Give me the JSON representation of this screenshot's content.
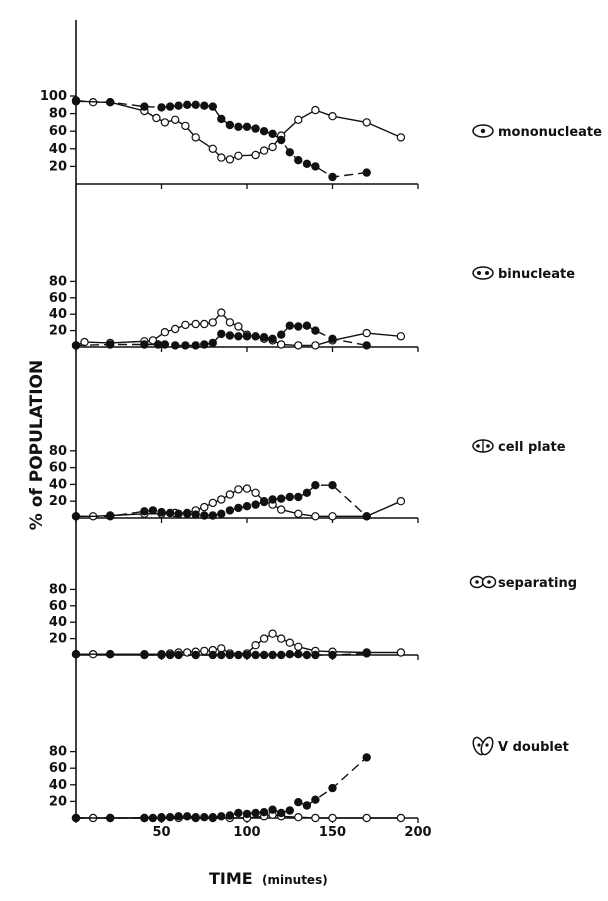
{
  "figure": {
    "ylabel": "% of POPULATION",
    "xlabel": "TIME",
    "xlabel_unit": "(minutes)",
    "x_ticks": [
      "50",
      "100",
      "150",
      "200"
    ]
  },
  "chart_data": [
    {
      "type": "line",
      "panel": "mononucleate",
      "label": "mononucleate",
      "icon": "mononucleate-cell-icon",
      "xlim": [
        0,
        200
      ],
      "ylim": [
        0,
        100
      ],
      "y_ticks": [
        "100",
        "80",
        "60",
        "40",
        "20"
      ],
      "series": [
        {
          "marker": "open",
          "line": "solid",
          "x": [
            0,
            10,
            20,
            40,
            47,
            52,
            58,
            64,
            70,
            80,
            85,
            90,
            95,
            105,
            110,
            115,
            120,
            130,
            140,
            150,
            170,
            190
          ],
          "y": [
            95,
            93,
            93,
            83,
            75,
            70,
            73,
            66,
            53,
            40,
            30,
            28,
            32,
            33,
            38,
            42,
            55,
            73,
            84,
            77,
            70,
            53
          ]
        },
        {
          "marker": "filled",
          "line": "dashed",
          "x": [
            0,
            20,
            40,
            50,
            55,
            60,
            65,
            70,
            75,
            80,
            85,
            90,
            95,
            100,
            105,
            110,
            115,
            120,
            125,
            130,
            135,
            140,
            150,
            170
          ],
          "y": [
            94,
            93,
            88,
            87,
            88,
            89,
            90,
            90,
            89,
            88,
            74,
            67,
            65,
            65,
            63,
            60,
            57,
            50,
            36,
            27,
            23,
            20,
            8,
            13
          ]
        }
      ]
    },
    {
      "type": "line",
      "panel": "binucleate",
      "label": "binucleate",
      "icon": "binucleate-cell-icon",
      "xlim": [
        0,
        200
      ],
      "ylim": [
        0,
        100
      ],
      "y_ticks": [
        "80",
        "60",
        "40",
        "20"
      ],
      "series": [
        {
          "marker": "open",
          "line": "solid",
          "x": [
            0,
            5,
            20,
            40,
            45,
            52,
            58,
            64,
            70,
            75,
            80,
            85,
            90,
            95,
            100,
            110,
            115,
            120,
            130,
            140,
            150,
            170,
            190
          ],
          "y": [
            2,
            6,
            5,
            7,
            8,
            18,
            22,
            27,
            28,
            28,
            30,
            42,
            30,
            25,
            15,
            10,
            8,
            3,
            2,
            2,
            8,
            17,
            13
          ]
        },
        {
          "marker": "filled",
          "line": "dashed",
          "x": [
            0,
            20,
            40,
            48,
            52,
            58,
            64,
            70,
            75,
            80,
            85,
            90,
            95,
            100,
            105,
            110,
            115,
            120,
            125,
            130,
            135,
            140,
            150,
            170
          ],
          "y": [
            2,
            3,
            3,
            3,
            3,
            2,
            2,
            2,
            3,
            5,
            16,
            14,
            13,
            13,
            13,
            12,
            10,
            15,
            26,
            25,
            26,
            20,
            10,
            2
          ]
        }
      ]
    },
    {
      "type": "line",
      "panel": "cell plate",
      "label": "cell plate",
      "icon": "cell-plate-icon",
      "xlim": [
        0,
        200
      ],
      "ylim": [
        0,
        100
      ],
      "y_ticks": [
        "80",
        "60",
        "40",
        "20"
      ],
      "series": [
        {
          "marker": "open",
          "line": "solid",
          "x": [
            0,
            10,
            20,
            40,
            50,
            58,
            65,
            70,
            75,
            80,
            85,
            90,
            95,
            100,
            105,
            110,
            115,
            120,
            130,
            140,
            150,
            170,
            190
          ],
          "y": [
            2,
            2,
            3,
            5,
            5,
            6,
            6,
            9,
            13,
            18,
            22,
            28,
            34,
            35,
            30,
            20,
            16,
            10,
            5,
            2,
            2,
            2,
            20
          ]
        },
        {
          "marker": "filled",
          "line": "dashed",
          "x": [
            0,
            20,
            40,
            45,
            50,
            55,
            60,
            65,
            70,
            75,
            80,
            85,
            90,
            95,
            100,
            105,
            110,
            115,
            120,
            125,
            130,
            135,
            140,
            150,
            170
          ],
          "y": [
            2,
            2,
            8,
            9,
            7,
            6,
            5,
            5,
            4,
            3,
            3,
            5,
            9,
            12,
            14,
            16,
            19,
            22,
            23,
            25,
            25,
            30,
            39,
            39,
            2
          ]
        }
      ]
    },
    {
      "type": "line",
      "panel": "separating",
      "label": "separating",
      "icon": "separating-cell-icon",
      "xlim": [
        0,
        200
      ],
      "ylim": [
        0,
        100
      ],
      "y_ticks": [
        "80",
        "60",
        "40",
        "20"
      ],
      "series": [
        {
          "marker": "open",
          "line": "solid",
          "x": [
            0,
            10,
            20,
            40,
            50,
            55,
            60,
            65,
            70,
            75,
            80,
            85,
            90,
            100,
            105,
            110,
            115,
            120,
            125,
            130,
            140,
            150,
            170,
            190
          ],
          "y": [
            1,
            1,
            1,
            1,
            1,
            2,
            3,
            3,
            4,
            5,
            6,
            8,
            2,
            2,
            12,
            20,
            26,
            20,
            15,
            10,
            5,
            4,
            3,
            3
          ]
        },
        {
          "marker": "filled",
          "line": "dashed",
          "x": [
            0,
            20,
            40,
            50,
            55,
            60,
            70,
            80,
            85,
            90,
            95,
            100,
            105,
            110,
            115,
            120,
            125,
            130,
            135,
            140,
            150,
            170
          ],
          "y": [
            1,
            1,
            0,
            0,
            0,
            0,
            0,
            0,
            0,
            0,
            0,
            0,
            0,
            0,
            0,
            0,
            1,
            1,
            0,
            0,
            0,
            2
          ]
        }
      ]
    },
    {
      "type": "line",
      "panel": "V doublet",
      "label": "V doublet",
      "icon": "v-doublet-cell-icon",
      "xlim": [
        0,
        200
      ],
      "ylim": [
        0,
        100
      ],
      "y_ticks": [
        "80",
        "60",
        "40",
        "20"
      ],
      "series": [
        {
          "marker": "open",
          "line": "solid",
          "x": [
            0,
            10,
            20,
            40,
            50,
            60,
            70,
            80,
            90,
            100,
            110,
            115,
            120,
            130,
            140,
            150,
            170,
            190
          ],
          "y": [
            0,
            0,
            0,
            0,
            0,
            0,
            0,
            0,
            0,
            0,
            2,
            4,
            2,
            1,
            0,
            0,
            0,
            0
          ]
        },
        {
          "marker": "filled",
          "line": "dashed",
          "x": [
            0,
            20,
            40,
            45,
            50,
            55,
            60,
            65,
            70,
            75,
            80,
            85,
            90,
            95,
            100,
            105,
            110,
            115,
            120,
            125,
            130,
            135,
            140,
            150,
            170
          ],
          "y": [
            0,
            0,
            0,
            0,
            1,
            1,
            2,
            2,
            1,
            1,
            1,
            2,
            3,
            6,
            5,
            6,
            7,
            10,
            6,
            9,
            19,
            15,
            22,
            36,
            73
          ]
        }
      ]
    }
  ]
}
